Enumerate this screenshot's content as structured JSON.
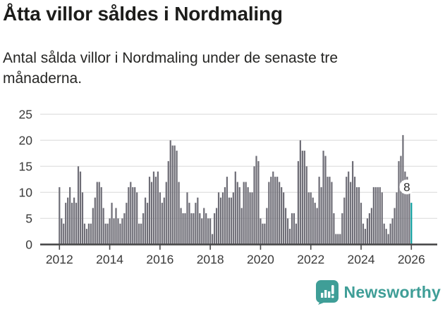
{
  "header": {
    "title": "Åtta villor såldes i Nordmaling",
    "subtitle": "Antal sålda villor i Nordmaling under de senaste tre månaderna."
  },
  "chart_data": {
    "type": "bar",
    "title": "Åtta villor såldes i Nordmaling",
    "subtitle": "Antal sålda villor i Nordmaling under de senaste tre månaderna.",
    "frequency": "monthly",
    "x_start": "2012-01",
    "x_tick_labels": [
      "2012",
      "2014",
      "2016",
      "2018",
      "2020",
      "2022",
      "2024",
      "2026"
    ],
    "y_ticks": [
      0,
      5,
      10,
      15,
      20,
      25
    ],
    "ylim": [
      0,
      25
    ],
    "grid": true,
    "legend": false,
    "values": [
      11,
      5,
      4,
      8,
      9,
      11,
      8,
      9,
      8,
      15,
      14,
      10,
      4,
      3,
      4,
      4,
      7,
      9,
      12,
      12,
      11,
      7,
      4,
      4,
      5,
      8,
      5,
      7,
      5,
      4,
      5,
      6,
      8,
      11,
      12,
      11,
      11,
      10,
      4,
      4,
      6,
      9,
      8,
      13,
      12,
      14,
      13,
      14,
      10,
      8,
      9,
      12,
      16,
      20,
      19,
      19,
      18,
      12,
      7,
      6,
      6,
      10,
      8,
      6,
      6,
      8,
      9,
      6,
      5,
      7,
      6,
      5,
      5,
      2,
      6,
      7,
      10,
      9,
      10,
      11,
      13,
      9,
      9,
      10,
      14,
      12,
      11,
      7,
      12,
      12,
      11,
      10,
      10,
      15,
      17,
      16,
      5,
      4,
      4,
      7,
      12,
      13,
      14,
      13,
      13,
      12,
      11,
      10,
      7,
      5,
      3,
      6,
      6,
      4,
      16,
      20,
      18,
      18,
      15,
      10,
      10,
      9,
      8,
      7,
      13,
      11,
      18,
      17,
      13,
      13,
      12,
      6,
      2,
      2,
      2,
      6,
      9,
      13,
      14,
      12,
      16,
      13,
      11,
      11,
      8,
      4,
      3,
      5,
      6,
      7,
      11,
      11,
      11,
      11,
      10,
      4,
      3,
      2,
      4,
      5,
      7,
      10,
      16,
      17,
      21,
      14,
      13,
      12,
      8
    ],
    "highlight_last": true,
    "last_value_label": "8",
    "colors": {
      "bar": "#6e6d76",
      "highlight": "#0d9fa0",
      "grid": "#e3e3e3",
      "axis": "#4a4a4b",
      "tick_text": "#3a3a3a",
      "label_text": "#2b2b2b",
      "label_halo": "#ffffff"
    }
  },
  "footer": {
    "brand": "Newsworthy",
    "brand_color": "#3f9e97",
    "logo_icon": "bar-chart-speech-bubble-icon"
  }
}
